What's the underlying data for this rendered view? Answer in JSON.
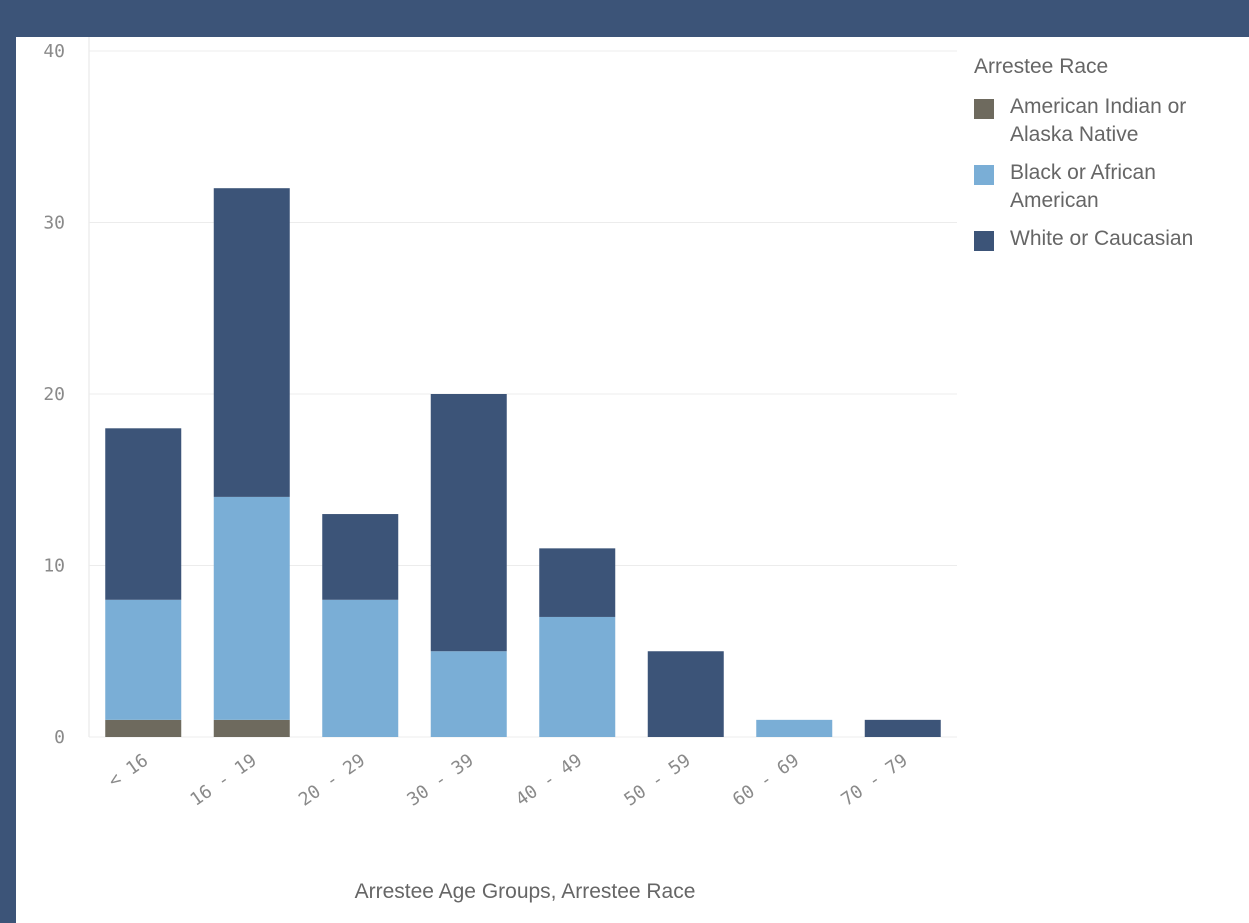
{
  "chart_data": {
    "type": "bar",
    "stacked": true,
    "categories": [
      "< 16",
      "16 - 19",
      "20 - 29",
      "30 - 39",
      "40 - 49",
      "50 - 59",
      "60 - 69",
      "70 - 79"
    ],
    "series": [
      {
        "name": "American Indian or Alaska Native",
        "color": "#6e6a5e",
        "values": [
          1,
          1,
          0,
          0,
          0,
          0,
          0,
          0
        ]
      },
      {
        "name": "Black or African American",
        "color": "#7aaed6",
        "values": [
          7,
          13,
          8,
          5,
          7,
          0,
          1,
          0
        ]
      },
      {
        "name": "White or Caucasian",
        "color": "#3c5478",
        "values": [
          10,
          18,
          5,
          15,
          4,
          5,
          0,
          1
        ]
      }
    ],
    "title": "",
    "xlabel": "Arrestee Age Groups, Arrestee Race",
    "ylabel": "",
    "ylim": [
      0,
      40
    ],
    "yticks": [
      "0",
      "10",
      "20",
      "30",
      "40"
    ],
    "grid": true,
    "legend_title": "Arrestee Race",
    "legend_position": "right"
  }
}
